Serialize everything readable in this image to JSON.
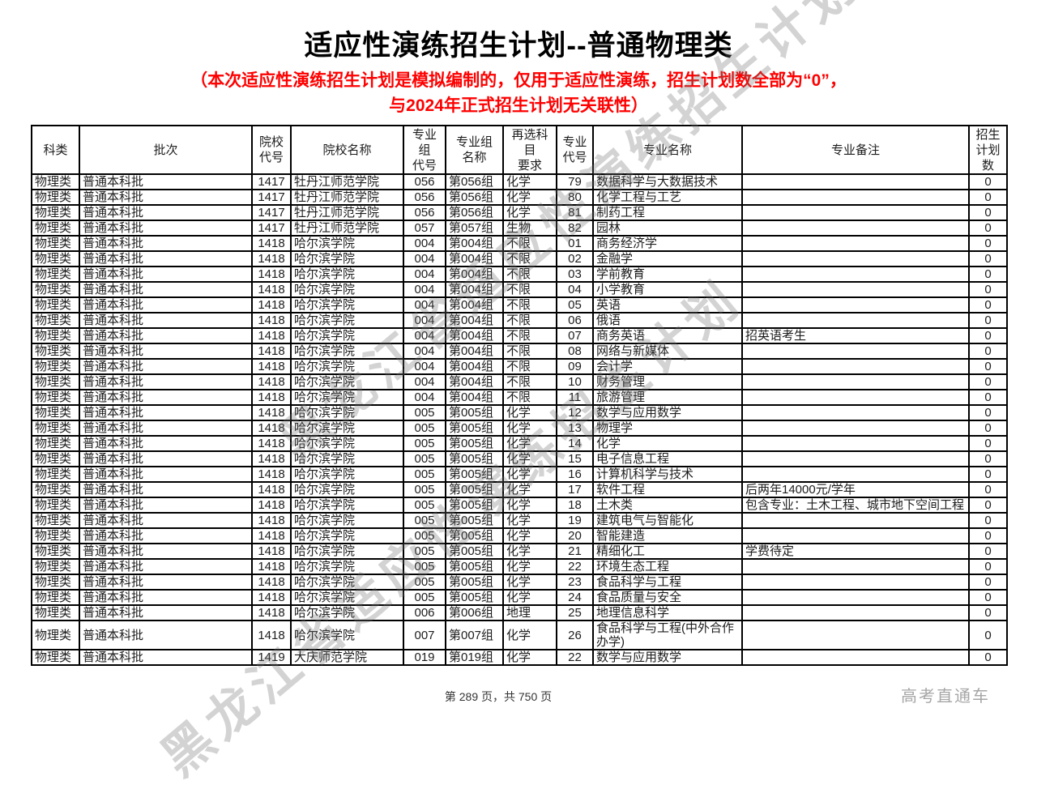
{
  "page": {
    "title": "适应性演练招生计划--普通物理类",
    "notice_line1": "（本次适应性演练招生计划是模拟编制的，仅用于适应性演练，招生计划数全部为“0”，",
    "notice_line2": "与2024年正式招生计划无关联性）",
    "footer_page": "第 289 页，共 750 页",
    "brand": "高考直通车",
    "watermark": "黑龙江省适应性演练招生计划",
    "accent_red": "#fe0000"
  },
  "table": {
    "headers": [
      "科类",
      "批次",
      "院校\n代号",
      "院校名称",
      "专业组\n代号",
      "专业组\n名称",
      "再选科目\n要求",
      "专业\n代号",
      "专业名称",
      "专业备注",
      "招生\n计划\n数"
    ],
    "rows": [
      [
        "物理类",
        "普通本科批",
        "1417",
        "牡丹江师范学院",
        "056",
        "第056组",
        "化学",
        "79",
        "数据科学与大数据技术",
        "",
        "0"
      ],
      [
        "物理类",
        "普通本科批",
        "1417",
        "牡丹江师范学院",
        "056",
        "第056组",
        "化学",
        "80",
        "化学工程与工艺",
        "",
        "0"
      ],
      [
        "物理类",
        "普通本科批",
        "1417",
        "牡丹江师范学院",
        "056",
        "第056组",
        "化学",
        "81",
        "制药工程",
        "",
        "0"
      ],
      [
        "物理类",
        "普通本科批",
        "1417",
        "牡丹江师范学院",
        "057",
        "第057组",
        "生物",
        "82",
        "园林",
        "",
        "0"
      ],
      [
        "物理类",
        "普通本科批",
        "1418",
        "哈尔滨学院",
        "004",
        "第004组",
        "不限",
        "01",
        "商务经济学",
        "",
        "0"
      ],
      [
        "物理类",
        "普通本科批",
        "1418",
        "哈尔滨学院",
        "004",
        "第004组",
        "不限",
        "02",
        "金融学",
        "",
        "0"
      ],
      [
        "物理类",
        "普通本科批",
        "1418",
        "哈尔滨学院",
        "004",
        "第004组",
        "不限",
        "03",
        "学前教育",
        "",
        "0"
      ],
      [
        "物理类",
        "普通本科批",
        "1418",
        "哈尔滨学院",
        "004",
        "第004组",
        "不限",
        "04",
        "小学教育",
        "",
        "0"
      ],
      [
        "物理类",
        "普通本科批",
        "1418",
        "哈尔滨学院",
        "004",
        "第004组",
        "不限",
        "05",
        "英语",
        "",
        "0"
      ],
      [
        "物理类",
        "普通本科批",
        "1418",
        "哈尔滨学院",
        "004",
        "第004组",
        "不限",
        "06",
        "俄语",
        "",
        "0"
      ],
      [
        "物理类",
        "普通本科批",
        "1418",
        "哈尔滨学院",
        "004",
        "第004组",
        "不限",
        "07",
        "商务英语",
        "招英语考生",
        "0"
      ],
      [
        "物理类",
        "普通本科批",
        "1418",
        "哈尔滨学院",
        "004",
        "第004组",
        "不限",
        "08",
        "网络与新媒体",
        "",
        "0"
      ],
      [
        "物理类",
        "普通本科批",
        "1418",
        "哈尔滨学院",
        "004",
        "第004组",
        "不限",
        "09",
        "会计学",
        "",
        "0"
      ],
      [
        "物理类",
        "普通本科批",
        "1418",
        "哈尔滨学院",
        "004",
        "第004组",
        "不限",
        "10",
        "财务管理",
        "",
        "0"
      ],
      [
        "物理类",
        "普通本科批",
        "1418",
        "哈尔滨学院",
        "004",
        "第004组",
        "不限",
        "11",
        "旅游管理",
        "",
        "0"
      ],
      [
        "物理类",
        "普通本科批",
        "1418",
        "哈尔滨学院",
        "005",
        "第005组",
        "化学",
        "12",
        "数学与应用数学",
        "",
        "0"
      ],
      [
        "物理类",
        "普通本科批",
        "1418",
        "哈尔滨学院",
        "005",
        "第005组",
        "化学",
        "13",
        "物理学",
        "",
        "0"
      ],
      [
        "物理类",
        "普通本科批",
        "1418",
        "哈尔滨学院",
        "005",
        "第005组",
        "化学",
        "14",
        "化学",
        "",
        "0"
      ],
      [
        "物理类",
        "普通本科批",
        "1418",
        "哈尔滨学院",
        "005",
        "第005组",
        "化学",
        "15",
        "电子信息工程",
        "",
        "0"
      ],
      [
        "物理类",
        "普通本科批",
        "1418",
        "哈尔滨学院",
        "005",
        "第005组",
        "化学",
        "16",
        "计算机科学与技术",
        "",
        "0"
      ],
      [
        "物理类",
        "普通本科批",
        "1418",
        "哈尔滨学院",
        "005",
        "第005组",
        "化学",
        "17",
        "软件工程",
        "后两年14000元/学年",
        "0"
      ],
      [
        "物理类",
        "普通本科批",
        "1418",
        "哈尔滨学院",
        "005",
        "第005组",
        "化学",
        "18",
        "土木类",
        "包含专业：土木工程、城市地下空间工程",
        "0"
      ],
      [
        "物理类",
        "普通本科批",
        "1418",
        "哈尔滨学院",
        "005",
        "第005组",
        "化学",
        "19",
        "建筑电气与智能化",
        "",
        "0"
      ],
      [
        "物理类",
        "普通本科批",
        "1418",
        "哈尔滨学院",
        "005",
        "第005组",
        "化学",
        "20",
        "智能建造",
        "",
        "0"
      ],
      [
        "物理类",
        "普通本科批",
        "1418",
        "哈尔滨学院",
        "005",
        "第005组",
        "化学",
        "21",
        "精细化工",
        "学费待定",
        "0"
      ],
      [
        "物理类",
        "普通本科批",
        "1418",
        "哈尔滨学院",
        "005",
        "第005组",
        "化学",
        "22",
        "环境生态工程",
        "",
        "0"
      ],
      [
        "物理类",
        "普通本科批",
        "1418",
        "哈尔滨学院",
        "005",
        "第005组",
        "化学",
        "23",
        "食品科学与工程",
        "",
        "0"
      ],
      [
        "物理类",
        "普通本科批",
        "1418",
        "哈尔滨学院",
        "005",
        "第005组",
        "化学",
        "24",
        "食品质量与安全",
        "",
        "0"
      ],
      [
        "物理类",
        "普通本科批",
        "1418",
        "哈尔滨学院",
        "006",
        "第006组",
        "地理",
        "25",
        "地理信息科学",
        "",
        "0"
      ],
      [
        "物理类",
        "普通本科批",
        "1418",
        "哈尔滨学院",
        "007",
        "第007组",
        "化学",
        "26",
        "食品科学与工程(中外合作办学)",
        "",
        "0"
      ],
      [
        "物理类",
        "普通本科批",
        "1419",
        "大庆师范学院",
        "019",
        "第019组",
        "化学",
        "22",
        "数学与应用数学",
        "",
        "0"
      ]
    ]
  }
}
